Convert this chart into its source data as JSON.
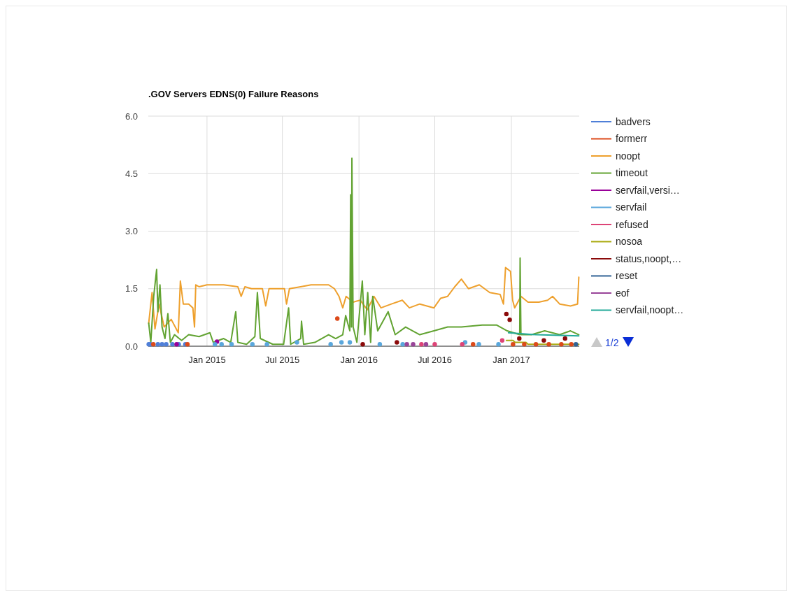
{
  "chart_data": {
    "type": "line",
    "title": ".GOV Servers EDNS(0) Failure Reasons",
    "xlim": [
      "2014-08-13",
      "2017-06-13"
    ],
    "xticks": [
      {
        "value": "2015-01-01",
        "label": "Jan 2015"
      },
      {
        "value": "2015-07-01",
        "label": "Jul 2015"
      },
      {
        "value": "2016-01-01",
        "label": "Jan 2016"
      },
      {
        "value": "2016-07-01",
        "label": "Jul 2016"
      },
      {
        "value": "2017-01-01",
        "label": "Jan 2017"
      }
    ],
    "ylim": [
      0,
      6
    ],
    "yticks": [
      {
        "value": 0,
        "label": "0.0"
      },
      {
        "value": 1.5,
        "label": "1.5"
      },
      {
        "value": 3,
        "label": "3.0"
      },
      {
        "value": 4.5,
        "label": "4.5"
      },
      {
        "value": 6,
        "label": "6.0"
      }
    ],
    "grid": true,
    "legend": "right",
    "annotations": [
      "1/2"
    ],
    "series": [
      {
        "name": "badvers",
        "color": "#4f7fd8",
        "type": "scatter",
        "marker": "circle",
        "x": [
          "2014-08-14",
          "2014-08-18",
          "2014-09-05",
          "2014-09-15",
          "2014-09-25",
          "2014-10-10",
          "2014-10-25",
          "2014-11-10"
        ],
        "values": [
          0.05,
          0.05,
          0.05,
          0.05,
          0.05,
          0.05,
          0.05,
          0.05
        ]
      },
      {
        "name": "formerr",
        "color": "#dc4a1a",
        "type": "scatter",
        "marker": "circle",
        "x": [
          "2014-08-25",
          "2014-11-15",
          "2015-11-10",
          "2016-10-01",
          "2017-01-05",
          "2017-02-01",
          "2017-03-01",
          "2017-04-01",
          "2017-05-01",
          "2017-05-25"
        ],
        "values": [
          0.05,
          0.05,
          0.72,
          0.05,
          0.05,
          0.05,
          0.05,
          0.05,
          0.05,
          0.05
        ]
      },
      {
        "name": "noopt",
        "color": "#eea02d",
        "x": [
          "2014-08-14",
          "2014-08-22",
          "2014-08-29",
          "2014-09-08",
          "2014-09-20",
          "2014-10-07",
          "2014-10-24",
          "2014-10-29",
          "2014-11-05",
          "2014-11-18",
          "2014-11-28",
          "2014-12-02",
          "2014-12-05",
          "2014-12-13",
          "2015-01-01",
          "2015-02-10",
          "2015-03-16",
          "2015-03-24",
          "2015-04-02",
          "2015-04-18",
          "2015-05-14",
          "2015-05-22",
          "2015-05-30",
          "2015-06-16",
          "2015-07-06",
          "2015-07-11",
          "2015-07-18",
          "2015-08-14",
          "2015-09-08",
          "2015-10-20",
          "2015-11-03",
          "2015-11-14",
          "2015-11-23",
          "2015-12-01",
          "2015-12-18",
          "2016-01-04",
          "2016-01-21",
          "2016-02-06",
          "2016-02-23",
          "2016-03-19",
          "2016-04-14",
          "2016-05-01",
          "2016-05-26",
          "2016-06-29",
          "2016-07-15",
          "2016-08-01",
          "2016-08-18",
          "2016-09-03",
          "2016-09-20",
          "2016-10-16",
          "2016-11-10",
          "2016-12-05",
          "2016-12-13",
          "2016-12-18",
          "2016-12-30",
          "2017-01-04",
          "2017-01-09",
          "2017-01-24",
          "2017-02-10",
          "2017-03-08",
          "2017-03-29",
          "2017-04-10",
          "2017-04-27",
          "2017-05-23",
          "2017-06-09",
          "2017-06-12"
        ],
        "values": [
          0.6,
          1.4,
          0.45,
          1.1,
          0.5,
          0.7,
          0.35,
          1.7,
          1.1,
          1.1,
          1.0,
          0.5,
          1.6,
          1.55,
          1.6,
          1.6,
          1.55,
          1.3,
          1.55,
          1.5,
          1.5,
          1.05,
          1.5,
          1.5,
          1.5,
          1.1,
          1.5,
          1.55,
          1.6,
          1.6,
          1.5,
          1.3,
          1.0,
          1.3,
          1.15,
          1.2,
          0.95,
          1.3,
          1.0,
          1.1,
          1.2,
          1.0,
          1.1,
          1.0,
          1.25,
          1.3,
          1.55,
          1.75,
          1.5,
          1.6,
          1.4,
          1.35,
          1.1,
          2.05,
          1.95,
          1.2,
          1.0,
          1.3,
          1.15,
          1.15,
          1.2,
          1.3,
          1.1,
          1.05,
          1.1,
          1.8
        ]
      },
      {
        "name": "timeout",
        "color": "#62a332",
        "x": [
          "2014-08-14",
          "2014-08-19",
          "2014-08-26",
          "2014-09-02",
          "2014-09-05",
          "2014-09-10",
          "2014-09-15",
          "2014-09-22",
          "2014-09-29",
          "2014-10-05",
          "2014-10-15",
          "2014-11-01",
          "2014-11-18",
          "2014-12-13",
          "2015-01-08",
          "2015-01-16",
          "2015-02-10",
          "2015-02-27",
          "2015-03-11",
          "2015-03-16",
          "2015-04-06",
          "2015-04-26",
          "2015-05-02",
          "2015-05-09",
          "2015-06-08",
          "2015-07-04",
          "2015-07-16",
          "2015-07-21",
          "2015-08-14",
          "2015-08-16",
          "2015-08-21",
          "2015-09-17",
          "2015-10-20",
          "2015-11-06",
          "2015-11-23",
          "2015-11-30",
          "2015-12-10",
          "2015-12-12",
          "2015-12-14",
          "2015-12-15",
          "2015-12-18",
          "2015-12-27",
          "2016-01-09",
          "2016-01-15",
          "2016-01-22",
          "2016-01-29",
          "2016-02-03",
          "2016-02-15",
          "2016-03-11",
          "2016-03-28",
          "2016-04-22",
          "2016-05-26",
          "2016-06-29",
          "2016-08-01",
          "2016-09-03",
          "2016-10-23",
          "2016-11-27",
          "2016-12-22",
          "2017-01-21",
          "2017-01-22",
          "2017-01-24",
          "2017-02-18",
          "2017-03-22",
          "2017-04-27",
          "2017-05-23",
          "2017-06-12"
        ],
        "values": [
          0.6,
          0.1,
          1.3,
          2.0,
          0.9,
          1.6,
          0.5,
          0.2,
          0.85,
          0.1,
          0.3,
          0.15,
          0.3,
          0.25,
          0.35,
          0.1,
          0.2,
          0.1,
          0.9,
          0.1,
          0.05,
          0.25,
          1.4,
          0.2,
          0.05,
          0.05,
          1.0,
          0.05,
          0.2,
          0.65,
          0.05,
          0.1,
          0.3,
          0.2,
          0.3,
          0.8,
          0.4,
          3.95,
          0.5,
          4.9,
          0.5,
          0.1,
          1.7,
          0.3,
          1.4,
          0.1,
          1.3,
          0.4,
          0.9,
          0.3,
          0.5,
          0.3,
          0.4,
          0.5,
          0.5,
          0.55,
          0.55,
          0.4,
          0.3,
          2.3,
          0.3,
          0.3,
          0.4,
          0.3,
          0.4,
          0.3
        ]
      },
      {
        "name": "servfail,versi…",
        "color": "#990099",
        "type": "scatter",
        "marker": "circle",
        "x": [
          "2014-10-20",
          "2015-01-25"
        ],
        "values": [
          0.05,
          0.12
        ]
      },
      {
        "name": "servfail",
        "color": "#5aa7dc",
        "type": "scatter",
        "marker": "circle",
        "x": [
          "2015-01-20",
          "2015-02-05",
          "2015-03-01",
          "2015-04-20",
          "2015-05-25",
          "2015-08-05",
          "2015-10-25",
          "2015-11-20",
          "2015-12-10",
          "2016-02-20",
          "2016-04-15",
          "2016-09-12",
          "2016-10-15",
          "2016-12-01"
        ],
        "values": [
          0.05,
          0.05,
          0.05,
          0.05,
          0.05,
          0.1,
          0.05,
          0.1,
          0.1,
          0.05,
          0.05,
          0.1,
          0.05,
          0.05
        ]
      },
      {
        "name": "refused",
        "color": "#dd4477",
        "type": "scatter",
        "marker": "circle",
        "x": [
          "2016-05-30",
          "2016-07-01",
          "2016-09-05",
          "2016-12-10"
        ],
        "values": [
          0.05,
          0.05,
          0.05,
          0.15
        ]
      },
      {
        "name": "nosoa",
        "color": "#aaaa11",
        "x": [
          "2016-12-20",
          "2017-01-05",
          "2017-01-10",
          "2017-02-05",
          "2017-02-10",
          "2017-06-12"
        ],
        "values": [
          0.15,
          0.15,
          0.1,
          0.1,
          0.05,
          0.05
        ]
      },
      {
        "name": "status,noopt,…",
        "color": "#8b0a0a",
        "type": "scatter",
        "marker": "circle",
        "x": [
          "2016-01-10",
          "2016-04-01",
          "2016-12-20",
          "2016-12-28",
          "2017-01-20",
          "2017-03-20",
          "2017-05-10"
        ],
        "values": [
          0.05,
          0.1,
          0.84,
          0.69,
          0.2,
          0.15,
          0.2
        ]
      },
      {
        "name": "reset",
        "color": "#316395",
        "type": "scatter",
        "marker": "circle",
        "x": [
          "2017-06-05"
        ],
        "values": [
          0.05
        ]
      },
      {
        "name": "eof",
        "color": "#994499",
        "type": "scatter",
        "marker": "circle",
        "x": [
          "2016-04-25",
          "2016-05-10",
          "2016-06-10"
        ],
        "values": [
          0.05,
          0.05,
          0.05
        ]
      },
      {
        "name": "servfail,noopt…",
        "color": "#22aa99",
        "x": [
          "2016-12-25",
          "2017-03-01",
          "2017-06-12"
        ],
        "values": [
          0.35,
          0.3,
          0.27
        ]
      }
    ]
  }
}
